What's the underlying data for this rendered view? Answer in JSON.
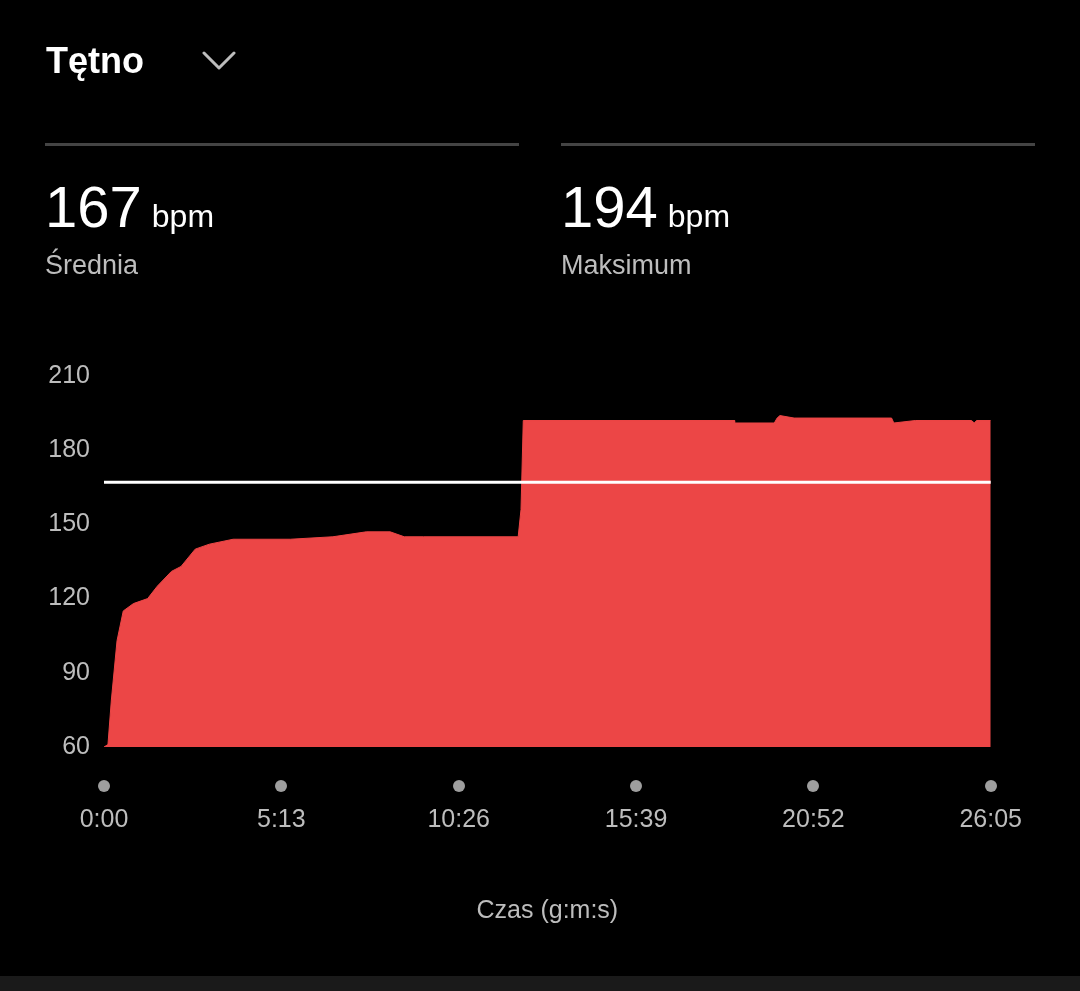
{
  "chart_data": {
    "type": "area",
    "title": "Tętno",
    "xlabel": "Czas (g:m:s)",
    "annotations": [
      "167",
      "bpm",
      "Średnia",
      "194",
      "bpm",
      "Maksimum"
    ],
    "x": [
      0,
      7,
      13,
      23,
      34,
      52,
      77,
      94,
      119,
      136,
      161,
      186,
      228,
      329,
      404,
      463,
      505,
      530,
      564,
      731,
      736,
      740,
      1113,
      1113,
      1183,
      1188,
      1193,
      1218,
      1390,
      1394,
      1432,
      1531,
      1536,
      1540,
      1565
    ],
    "series": [
      {
        "color": "#ec4646",
        "values": [
          60,
          61,
          79,
          103,
          115,
          118,
          120,
          125,
          131,
          133,
          140,
          142,
          144,
          144,
          145,
          147,
          147,
          145,
          145,
          145,
          156,
          192,
          192,
          191,
          191,
          193,
          194,
          193,
          193,
          191,
          192,
          192,
          191,
          192,
          192
        ]
      }
    ],
    "xlim": [
      0,
      1565
    ],
    "xticks": [
      {
        "value": 0,
        "label": "0:00"
      },
      {
        "value": 313,
        "label": "5:13"
      },
      {
        "value": 626,
        "label": "10:26"
      },
      {
        "value": 939,
        "label": "15:39"
      },
      {
        "value": 1252,
        "label": "20:52"
      },
      {
        "value": 1565,
        "label": "26:05"
      }
    ],
    "ylim": [
      60,
      210
    ],
    "yticks": [
      60,
      90,
      120,
      150,
      180,
      210
    ],
    "ref_lines": [
      {
        "axis": "y",
        "value": 167,
        "color": "#ffffff"
      }
    ],
    "legend": false
  }
}
